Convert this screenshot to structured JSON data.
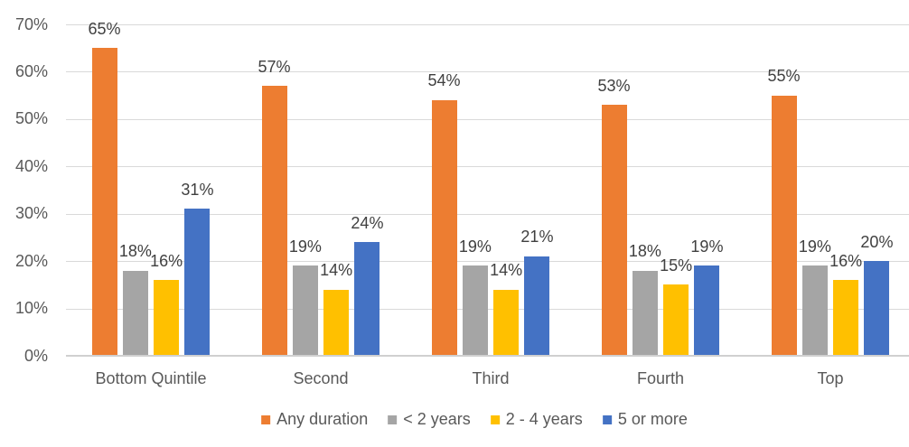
{
  "chart_data": {
    "type": "bar",
    "title": "",
    "categories": [
      "Bottom Quintile",
      "Second",
      "Third",
      "Fourth",
      "Top"
    ],
    "series": [
      {
        "name": "Any duration",
        "color": "#ED7D31",
        "values": [
          65,
          57,
          54,
          53,
          55
        ],
        "data_labels": [
          "65%",
          "57%",
          "54%",
          "53%",
          "55%"
        ]
      },
      {
        "name": "< 2 years",
        "color": "#A5A5A5",
        "values": [
          18,
          19,
          19,
          18,
          19
        ],
        "data_labels": [
          "18%",
          "19%",
          "19%",
          "18%",
          "19%"
        ]
      },
      {
        "name": "2 - 4 years",
        "color": "#FFC000",
        "values": [
          16,
          14,
          14,
          15,
          16
        ],
        "data_labels": [
          "16%",
          "14%",
          "14%",
          "15%",
          "16%"
        ]
      },
      {
        "name": "5 or more",
        "color": "#4472C4",
        "values": [
          31,
          24,
          21,
          19,
          20
        ],
        "data_labels": [
          "31%",
          "24%",
          "21%",
          "19%",
          "20%"
        ]
      }
    ],
    "y_axis": {
      "min": 0,
      "max": 70,
      "step": 10,
      "tick_labels": [
        "0%",
        "10%",
        "20%",
        "30%",
        "40%",
        "50%",
        "60%",
        "70%"
      ]
    },
    "xlabel": "",
    "ylabel": "",
    "grid": true,
    "legend_position": "bottom",
    "colors": {
      "background": "#FFFFFF",
      "gridline": "#D9D9D9",
      "axis_line": "#D0D0D0",
      "axis_text": "#595959",
      "category_text": "#595959",
      "legend_text": "#595959",
      "data_label_text": "#404040"
    }
  }
}
